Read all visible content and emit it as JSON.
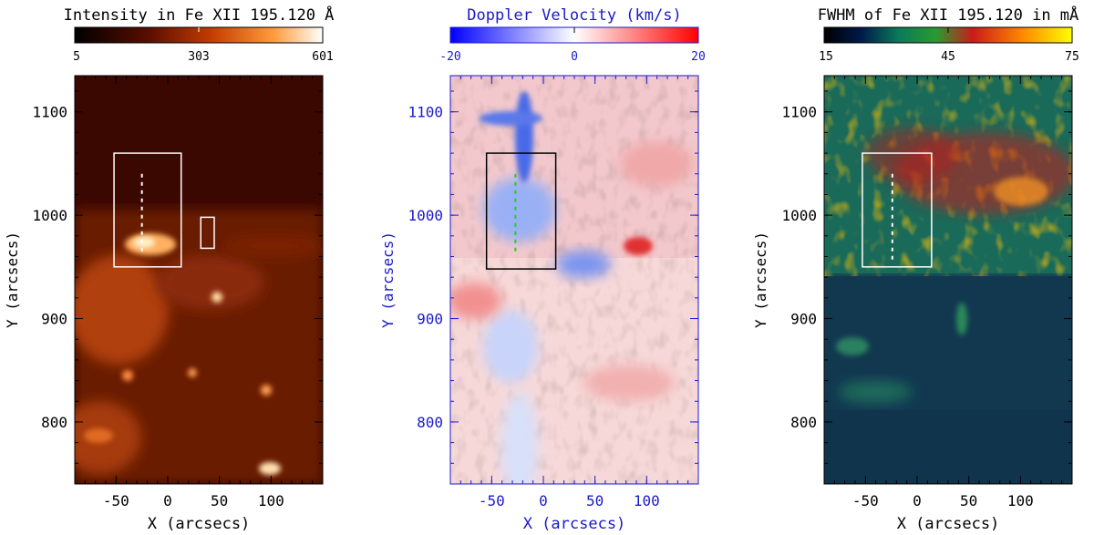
{
  "chart_data": [
    {
      "type": "heatmap",
      "title": "Intensity in Fe XII 195.120 Å",
      "colorbar": {
        "min": 5,
        "mid": 303,
        "max": 601,
        "ticks": [
          "5",
          "303",
          "601"
        ],
        "colormap": "heat"
      },
      "xlabel": "X (arcsecs)",
      "ylabel": "Y (arcsecs)",
      "xlim": [
        -90,
        150
      ],
      "ylim": [
        740,
        1135
      ],
      "xticks": [
        -50,
        0,
        50,
        100
      ],
      "yticks": [
        800,
        900,
        1000,
        1100
      ],
      "label_color": "#000000",
      "boxes": [
        {
          "x0": -52,
          "x1": 13,
          "y0": 950,
          "y1": 1060,
          "color": "#ffffff"
        },
        {
          "x0": 32,
          "x1": 45,
          "y0": 968,
          "y1": 998,
          "color": "#ffffff"
        }
      ],
      "slit": {
        "x": -25,
        "y0": 962,
        "y1": 1040,
        "color": "#ffffff"
      }
    },
    {
      "type": "heatmap",
      "title": "Doppler Velocity (km/s)",
      "colorbar": {
        "min": -20,
        "mid": 0,
        "max": 20,
        "ticks": [
          "-20",
          "0",
          "20"
        ],
        "colormap": "blue-white-red"
      },
      "xlabel": "X (arcsecs)",
      "ylabel": "Y (arcsecs)",
      "xlim": [
        -90,
        150
      ],
      "ylim": [
        740,
        1135
      ],
      "xticks": [
        -50,
        0,
        50,
        100
      ],
      "yticks": [
        800,
        900,
        1000,
        1100
      ],
      "label_color": "#1a1acc",
      "boxes": [
        {
          "x0": -55,
          "x1": 12,
          "y0": 948,
          "y1": 1060,
          "color": "#000000"
        }
      ],
      "slit": {
        "x": -27,
        "y0": 962,
        "y1": 1040,
        "color": "#22cc22"
      }
    },
    {
      "type": "heatmap",
      "title": "FWHM of Fe XII 195.120 in mÅ",
      "colorbar": {
        "min": 15,
        "mid": 45,
        "max": 75,
        "ticks": [
          "15",
          "45",
          "75"
        ],
        "colormap": "rainbow"
      },
      "xlabel": "X (arcsecs)",
      "ylabel": "Y (arcsecs)",
      "xlim": [
        -90,
        150
      ],
      "ylim": [
        740,
        1135
      ],
      "xticks": [
        -50,
        0,
        50,
        100
      ],
      "yticks": [
        800,
        900,
        1000,
        1100
      ],
      "label_color": "#000000",
      "boxes": [
        {
          "x0": -53,
          "x1": 14,
          "y0": 950,
          "y1": 1060,
          "color": "#ffffff"
        }
      ],
      "slit": {
        "x": -24,
        "y0": 955,
        "y1": 1040,
        "color": "#ffffff"
      }
    }
  ]
}
